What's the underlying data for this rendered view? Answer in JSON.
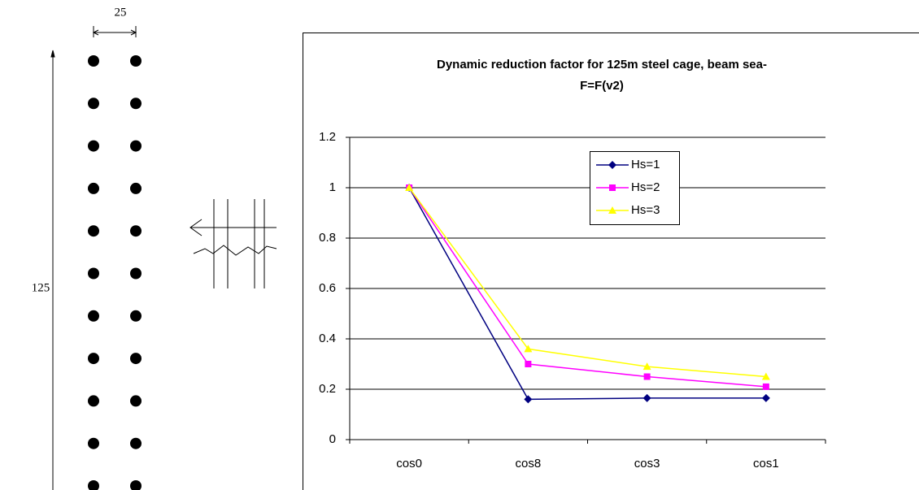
{
  "diagram": {
    "width_label": "25",
    "height_label": "125"
  },
  "chart_data": {
    "type": "line",
    "title": [
      "Dynamic reduction factor for 125m steel cage, beam sea-",
      "F=F(v2)"
    ],
    "categories": [
      "cos0",
      "cos8",
      "cos3",
      "cos1"
    ],
    "series": [
      {
        "name": "Hs=1",
        "color": "#000080",
        "marker": "diamond",
        "values": [
          1,
          0.16,
          0.165,
          0.165
        ]
      },
      {
        "name": "Hs=2",
        "color": "#ff00ff",
        "marker": "square",
        "values": [
          1,
          0.3,
          0.25,
          0.21
        ]
      },
      {
        "name": "Hs=3",
        "color": "#ffff00",
        "marker": "triangle",
        "values": [
          1,
          0.36,
          0.29,
          0.25
        ]
      }
    ],
    "ylim": [
      0,
      1.2
    ],
    "yticks": [
      0,
      0.2,
      0.4,
      0.6,
      0.8,
      1,
      1.2
    ],
    "grid": true
  }
}
